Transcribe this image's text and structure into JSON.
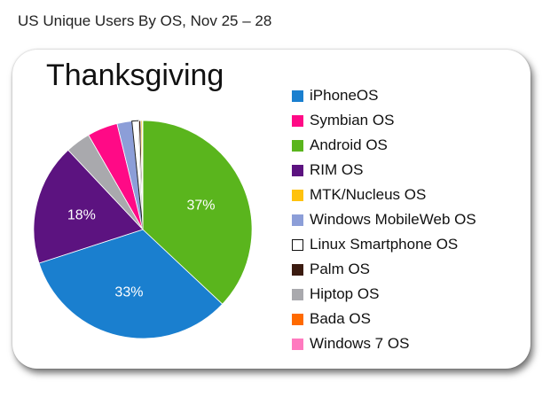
{
  "header": {
    "title": "US Unique Users By OS, Nov 25 – 28"
  },
  "chart_data": {
    "type": "pie",
    "title": "Thanksgiving",
    "legend_position": "right",
    "slices": [
      {
        "name": "Android OS",
        "value": 37,
        "color": "#5ab51d",
        "label": "37%"
      },
      {
        "name": "iPhoneOS",
        "value": 33,
        "color": "#1a7fcf",
        "label": "33%"
      },
      {
        "name": "RIM OS",
        "value": 18,
        "color": "#5c1380",
        "label": "18%"
      },
      {
        "name": "Hiptop OS",
        "value": 3.7,
        "color": "#a9a9ad",
        "label": ""
      },
      {
        "name": "Symbian OS",
        "value": 4.5,
        "color": "#ff0a86",
        "label": ""
      },
      {
        "name": "Windows MobileWeb OS",
        "value": 2.2,
        "color": "#8c9ed8",
        "label": ""
      },
      {
        "name": "Linux Smartphone OS",
        "value": 1,
        "color": "#ffffff",
        "label": ""
      },
      {
        "name": "Palm OS",
        "value": 0.3,
        "color": "#3b1b10",
        "label": ""
      },
      {
        "name": "MTK/Nucleus OS",
        "value": 0.2,
        "color": "#ffc20e",
        "label": ""
      },
      {
        "name": "Bada OS",
        "value": 0.05,
        "color": "#ff6a00",
        "label": ""
      },
      {
        "name": "Windows 7 OS",
        "value": 0.05,
        "color": "#ff7abf",
        "label": ""
      }
    ],
    "legend": [
      {
        "name": "iPhoneOS",
        "color": "#1a7fcf"
      },
      {
        "name": "Symbian OS",
        "color": "#ff0a86"
      },
      {
        "name": "Android OS",
        "color": "#5ab51d"
      },
      {
        "name": "RIM OS",
        "color": "#5c1380"
      },
      {
        "name": "MTK/Nucleus OS",
        "color": "#ffc20e"
      },
      {
        "name": "Windows MobileWeb OS",
        "color": "#8c9ed8"
      },
      {
        "name": "Linux Smartphone OS",
        "color": "#ffffff"
      },
      {
        "name": "Palm OS",
        "color": "#3b1b10"
      },
      {
        "name": "Hiptop OS",
        "color": "#a9a9ad"
      },
      {
        "name": "Bada OS",
        "color": "#ff6a00"
      },
      {
        "name": "Windows 7 OS",
        "color": "#ff7abf"
      }
    ]
  }
}
